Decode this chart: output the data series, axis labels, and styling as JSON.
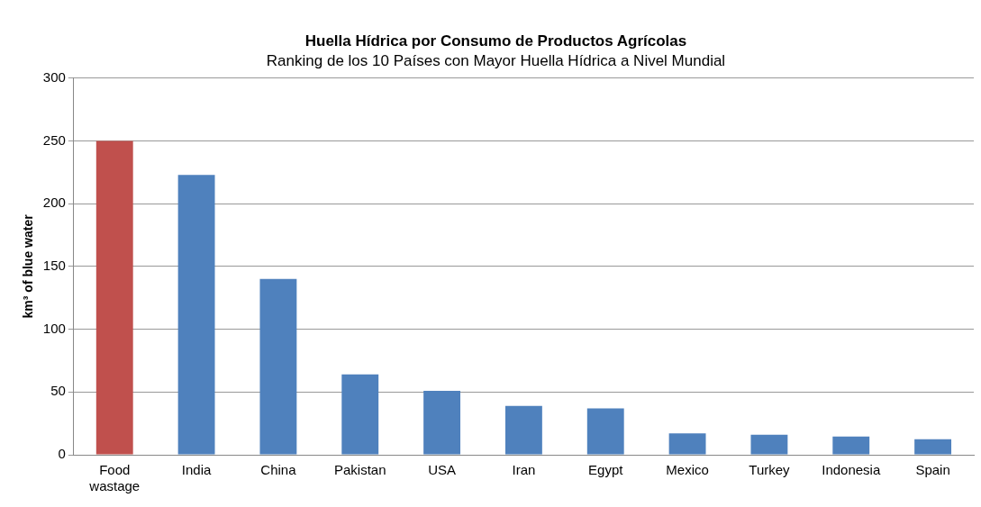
{
  "chart_data": {
    "type": "bar",
    "title": "Huella Hídrica por Consumo de Productos Agrícolas",
    "subtitle": "Ranking de los 10 Países con Mayor Huella Hídrica a Nivel Mundial",
    "ylabel": "km³ of blue water",
    "categories": [
      "Food wastage",
      "India",
      "China",
      "Pakistan",
      "USA",
      "Iran",
      "Egypt",
      "Mexico",
      "Turkey",
      "Indonesia",
      "Spain"
    ],
    "values": [
      250,
      223,
      140,
      64,
      51,
      39,
      37,
      17,
      16,
      14.5,
      12.3
    ],
    "colors": [
      "#c0504d",
      "#4f81bd",
      "#4f81bd",
      "#4f81bd",
      "#4f81bd",
      "#4f81bd",
      "#4f81bd",
      "#4f81bd",
      "#4f81bd",
      "#4f81bd",
      "#4f81bd"
    ],
    "ylim": [
      0,
      300
    ],
    "yticks": [
      0,
      50,
      100,
      150,
      200,
      250,
      300
    ],
    "grid": "y",
    "legend": false
  }
}
